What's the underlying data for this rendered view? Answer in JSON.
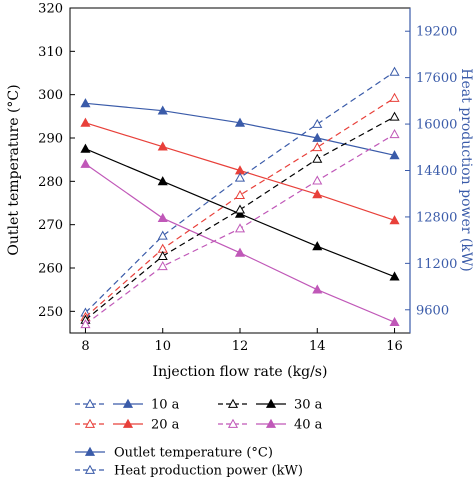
{
  "chart_data": {
    "type": "line",
    "x": [
      8,
      10,
      12,
      14,
      16
    ],
    "xlabel": "Injection flow rate (kg/s)",
    "ylabel": "Outlet temperature (°C)",
    "y2label": "Heat production power (kW)",
    "xlim": [
      7.6,
      16.4
    ],
    "ylim": [
      245,
      320
    ],
    "y2lim": [
      8800,
      20000
    ],
    "xticks": [
      "8",
      "10",
      "12",
      "14",
      "16"
    ],
    "yticks": [
      "250",
      "260",
      "270",
      "280",
      "290",
      "300",
      "310",
      "320"
    ],
    "y2ticks": [
      "9600",
      "11200",
      "12800",
      "14400",
      "16000",
      "17600",
      "19200"
    ],
    "grid": false,
    "series": [
      {
        "name": "10 a",
        "group": "temperature",
        "axis": "left",
        "color": "#3a5ba9",
        "marker": "filled-triangle",
        "dash": "solid",
        "values": [
          298,
          296.3,
          293.5,
          290,
          286
        ]
      },
      {
        "name": "20 a",
        "group": "temperature",
        "axis": "left",
        "color": "#e8403a",
        "marker": "filled-triangle",
        "dash": "solid",
        "values": [
          293.5,
          288,
          282.5,
          277,
          271
        ]
      },
      {
        "name": "30 a",
        "group": "temperature",
        "axis": "left",
        "color": "#000000",
        "marker": "filled-triangle",
        "dash": "solid",
        "values": [
          287.5,
          280,
          272.5,
          265,
          258
        ]
      },
      {
        "name": "40 a",
        "group": "temperature",
        "axis": "left",
        "color": "#c058b8",
        "marker": "filled-triangle",
        "dash": "solid",
        "values": [
          284,
          271.5,
          263.5,
          255,
          247.5
        ]
      },
      {
        "name": "10 a",
        "group": "power",
        "axis": "right",
        "color": "#3a5ba9",
        "marker": "open-triangle",
        "dash": "dashed",
        "values": [
          9500,
          12150,
          14150,
          16000,
          17800
        ]
      },
      {
        "name": "20 a",
        "group": "power",
        "axis": "right",
        "color": "#e8403a",
        "marker": "open-triangle",
        "dash": "dashed",
        "values": [
          9350,
          11700,
          13550,
          15200,
          16900
        ]
      },
      {
        "name": "30 a",
        "group": "power",
        "axis": "right",
        "color": "#000000",
        "marker": "open-triangle",
        "dash": "dashed",
        "values": [
          9250,
          11450,
          13050,
          14800,
          16250
        ]
      },
      {
        "name": "40 a",
        "group": "power",
        "axis": "right",
        "color": "#c058b8",
        "marker": "open-triangle",
        "dash": "dashed",
        "values": [
          9100,
          11100,
          12400,
          14050,
          15650
        ]
      }
    ],
    "legend": {
      "placement": "bottom",
      "entries": [
        {
          "label": "10 a",
          "color": "#3a5ba9"
        },
        {
          "label": "30 a",
          "color": "#000000"
        },
        {
          "label": "20 a",
          "color": "#e8403a"
        },
        {
          "label": "40 a",
          "color": "#c058b8"
        }
      ],
      "style_entries": [
        {
          "label": "Outlet temperature (°C)",
          "marker": "filled-triangle",
          "dash": "solid"
        },
        {
          "label": "Heat production power (kW)",
          "marker": "open-triangle",
          "dash": "dashed"
        }
      ],
      "style_color": "#3a5ba9"
    }
  }
}
